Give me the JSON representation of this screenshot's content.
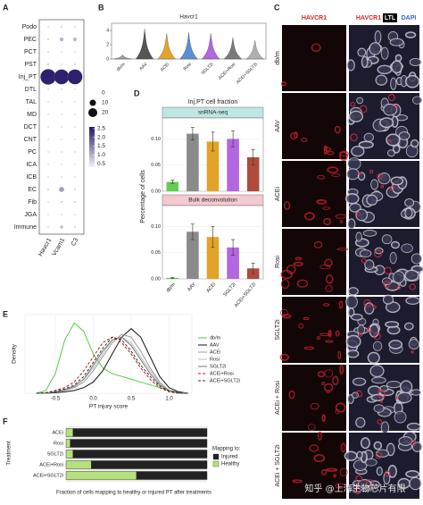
{
  "chart_data": [
    {
      "type": "dotplot",
      "label": "A",
      "rows": [
        "Podo",
        "PEC",
        "PCT",
        "PST",
        "Inj_PT",
        "DTL",
        "TAL",
        "MD",
        "DCT",
        "CNT",
        "PC",
        "ICA",
        "ICB",
        "EC",
        "Fib",
        "JGA",
        "Immune"
      ],
      "columns": [
        "Havcr1",
        "Vcam1",
        "C3"
      ],
      "size": [
        [
          0.3,
          0.5,
          0.3
        ],
        [
          0.5,
          3,
          3
        ],
        [
          0.5,
          0.3,
          0.3
        ],
        [
          0.8,
          0.3,
          0.5
        ],
        [
          60,
          55,
          55
        ],
        [
          0.3,
          0.3,
          0.3
        ],
        [
          0.3,
          0.3,
          0.3
        ],
        [
          0.3,
          0.3,
          0.3
        ],
        [
          0.3,
          0.3,
          0.3
        ],
        [
          0.3,
          0.3,
          0.3
        ],
        [
          0.3,
          0.3,
          0.3
        ],
        [
          0.3,
          0.3,
          0.3
        ],
        [
          0.3,
          0.3,
          0.3
        ],
        [
          0.5,
          6,
          0.5
        ],
        [
          0.3,
          0.8,
          0.5
        ],
        [
          0.3,
          0.3,
          0.3
        ],
        [
          0.3,
          2,
          0.5
        ]
      ],
      "color": [
        [
          0.5,
          0.6,
          0.5
        ],
        [
          0.6,
          1.0,
          0.9
        ],
        [
          0.5,
          0.5,
          0.5
        ],
        [
          0.6,
          0.5,
          0.5
        ],
        [
          2.5,
          2.5,
          2.5
        ],
        [
          0.5,
          0.5,
          0.5
        ],
        [
          0.5,
          0.5,
          0.5
        ],
        [
          0.5,
          0.5,
          0.5
        ],
        [
          0.5,
          0.5,
          0.5
        ],
        [
          0.5,
          0.5,
          0.5
        ],
        [
          0.5,
          0.5,
          0.5
        ],
        [
          0.5,
          0.5,
          0.5
        ],
        [
          0.5,
          0.5,
          0.5
        ],
        [
          0.5,
          1.2,
          0.5
        ],
        [
          0.5,
          0.6,
          0.5
        ],
        [
          0.5,
          0.5,
          0.5
        ],
        [
          0.5,
          0.8,
          0.5
        ]
      ],
      "size_ticks": [
        0,
        10,
        20
      ],
      "colorlim": [
        0.3,
        2.6
      ],
      "color_ticks": [
        {
          "value": 2.5,
          "label": "2.5"
        },
        {
          "value": 2,
          "label": "2.0"
        },
        1.5,
        {
          "value": 1,
          "label": "1.0"
        },
        0.5
      ],
      "colors": [
        "#f3f1f8",
        "#261566"
      ]
    },
    {
      "type": "violin",
      "label": "B",
      "title": "Havcr1",
      "categories": [
        "db/m",
        "AAV",
        "ACEi",
        "Rosi",
        "SGLT2i",
        "ACEi+Rosi",
        "ACEi+SGLT2i"
      ],
      "values": [
        0.6,
        4.2,
        3.6,
        3.7,
        3.6,
        3.0,
        2.6
      ],
      "colors": [
        "#9a9a9a",
        "#555555",
        "#e3a32a",
        "#5b8fd0",
        "#b266e0",
        "#7a7a7a",
        "#b0b0b0"
      ],
      "ylim": [
        0,
        5
      ],
      "yticks": [
        0,
        2,
        4
      ]
    },
    {
      "type": "bar_facets",
      "label": "D",
      "title": "Inj.PT cell fraction",
      "y_label": "Percentage of cells",
      "categories": [
        "db/m",
        "AAV",
        "ACEi",
        "SGLT2i",
        "ACEi+SGLT2i"
      ],
      "colors": [
        "#66cc55",
        "#8a8a8a",
        "#e3a32a",
        "#b266e0",
        "#b04a3b"
      ],
      "facets": [
        {
          "title": "snRNA-seq",
          "strip_color": "#bfe6e2",
          "values": [
            0.018,
            0.11,
            0.095,
            0.1,
            0.065
          ],
          "errors": [
            0.003,
            0.012,
            0.018,
            0.015,
            0.015
          ],
          "ylim": [
            0,
            0.14
          ],
          "yticks": [
            {
              "value": 0,
              "label": "0.00"
            },
            0.05,
            {
              "value": 0.1,
              "label": "0.10"
            }
          ]
        },
        {
          "title": "Bulk deconvolution",
          "strip_color": "#f5c9d0",
          "values": [
            0.002,
            0.09,
            0.08,
            0.06,
            0.02
          ],
          "errors": [
            0.001,
            0.015,
            0.02,
            0.015,
            0.01
          ],
          "ylim": [
            0,
            0.14
          ],
          "yticks": [
            {
              "value": 0,
              "label": "0.00"
            },
            0.05,
            {
              "value": 0.1,
              "label": "0.10"
            }
          ]
        }
      ]
    },
    {
      "type": "line",
      "label": "E",
      "x_label": "PT injury score",
      "y_label": "Density",
      "grid": true,
      "x": [
        -0.75,
        -0.625,
        -0.5,
        -0.375,
        -0.25,
        -0.125,
        0,
        0.125,
        0.25,
        0.375,
        0.5,
        0.625,
        0.75,
        0.875,
        1.0,
        1.125,
        1.25
      ],
      "xlim": [
        -0.9,
        1.3
      ],
      "xticks": [
        -0.5,
        {
          "value": 0,
          "label": "0.0"
        },
        0.5,
        {
          "value": 1,
          "label": "1.0"
        }
      ],
      "ylim": [
        0,
        2.8
      ],
      "series": [
        {
          "name": "db/m",
          "color": "#55cc44",
          "dash": false,
          "values": [
            0,
            0.1,
            0.7,
            1.9,
            2.5,
            2.2,
            1.4,
            0.9,
            0.7,
            0.6,
            0.5,
            0.4,
            0.3,
            0.2,
            0.1,
            0.05,
            0
          ]
        },
        {
          "name": "AAV",
          "color": "#111111",
          "dash": false,
          "values": [
            0,
            0,
            0.02,
            0.05,
            0.1,
            0.2,
            0.4,
            0.8,
            1.4,
            2.0,
            2.3,
            2.0,
            1.3,
            0.6,
            0.2,
            0.05,
            0
          ]
        },
        {
          "name": "ACEi",
          "color": "#999999",
          "dash": false,
          "values": [
            0,
            0,
            0.05,
            0.1,
            0.2,
            0.4,
            0.8,
            1.3,
            1.8,
            2.1,
            2.0,
            1.5,
            0.9,
            0.4,
            0.1,
            0.02,
            0
          ]
        },
        {
          "name": "Rosi",
          "color": "#bbbbbb",
          "dash": false,
          "values": [
            0,
            0,
            0.05,
            0.1,
            0.25,
            0.5,
            0.9,
            1.4,
            1.9,
            2.0,
            1.8,
            1.3,
            0.8,
            0.35,
            0.1,
            0.02,
            0
          ]
        },
        {
          "name": "SGLT2i",
          "color": "#777777",
          "dash": false,
          "values": [
            0,
            0,
            0.05,
            0.12,
            0.25,
            0.5,
            1.0,
            1.5,
            1.9,
            2.0,
            1.7,
            1.2,
            0.7,
            0.3,
            0.1,
            0.02,
            0
          ]
        },
        {
          "name": "ACEi+Rosi",
          "color": "#b02020",
          "dash": true,
          "values": [
            0,
            0.02,
            0.1,
            0.2,
            0.4,
            0.8,
            1.3,
            1.8,
            2.0,
            1.8,
            1.4,
            0.9,
            0.5,
            0.2,
            0.05,
            0,
            0
          ]
        },
        {
          "name": "ACEi+SGLT2i",
          "color": "#333333",
          "dash": true,
          "values": [
            0,
            0.02,
            0.08,
            0.15,
            0.3,
            0.6,
            1.1,
            1.6,
            2.0,
            1.9,
            1.5,
            1.0,
            0.6,
            0.25,
            0.08,
            0,
            0
          ]
        }
      ]
    },
    {
      "type": "stacked_barh",
      "label": "F",
      "x_label": "Fraction of cells mapping to healthy or injured PT after treatments",
      "y_label": "Treatment",
      "legend_title": "Mapping to:",
      "categories": [
        "ACEi",
        "Rosi",
        "SGLT2i",
        "ACEi+Rosi",
        "ACEi+SGLT2i"
      ],
      "xlim": [
        0,
        1
      ],
      "series": [
        {
          "name": "Healthy",
          "color": "#b5e07a",
          "values": [
            0.05,
            0.03,
            0.05,
            0.18,
            0.5
          ]
        },
        {
          "name": "Injured",
          "color": "#222222",
          "values": [
            0.95,
            0.97,
            0.95,
            0.82,
            0.5
          ]
        }
      ]
    }
  ],
  "panel_c": {
    "label": "C",
    "headers": [
      "HAVCR1",
      "HAVCR1",
      "LTL",
      "DAPI"
    ],
    "rows": [
      "db/m",
      "AAV",
      "ACEi",
      "Rosi",
      "SGLT2i",
      "ACEi + Rosi",
      "ACEi + SGLT2i"
    ]
  },
  "watermark": "知乎 @上海生物芯片有限"
}
